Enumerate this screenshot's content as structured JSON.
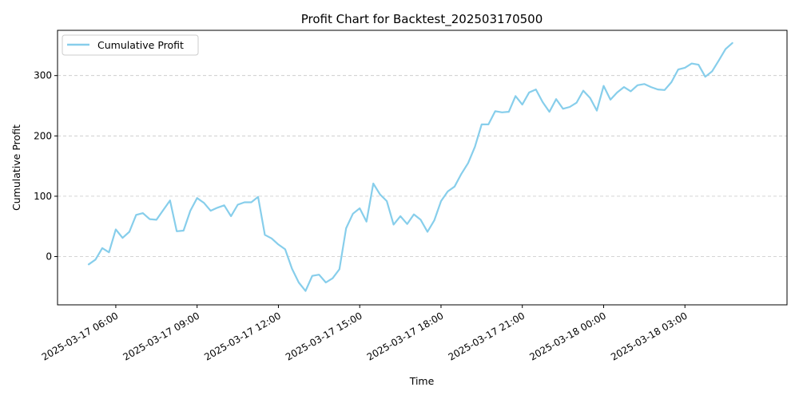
{
  "chart_data": {
    "type": "line",
    "title": "Profit Chart for Backtest_202503170500",
    "xlabel": "Time",
    "ylabel": "Cumulative Profit",
    "x_axis_type": "datetime",
    "xlim": [
      "2025-03-17 03:51",
      "2025-03-18 06:46"
    ],
    "ylim": [
      -80,
      375
    ],
    "yticks": [
      0,
      100,
      200,
      300
    ],
    "ytick_labels": [
      "0",
      "100",
      "200",
      "300"
    ],
    "xticks": [
      "2025-03-17 06:00",
      "2025-03-17 09:00",
      "2025-03-17 12:00",
      "2025-03-17 15:00",
      "2025-03-17 18:00",
      "2025-03-17 21:00",
      "2025-03-18 00:00",
      "2025-03-18 03:00"
    ],
    "xtick_labels": [
      "2025-03-17 06:00",
      "2025-03-17 09:00",
      "2025-03-17 12:00",
      "2025-03-17 15:00",
      "2025-03-17 18:00",
      "2025-03-17 21:00",
      "2025-03-18 00:00",
      "2025-03-18 03:00"
    ],
    "grid": "y-axis dashed",
    "legend": "upper left",
    "series": [
      {
        "name": "Cumulative Profit",
        "color": "#87CEEB",
        "x": [
          "2025-03-17 05:00",
          "2025-03-17 05:15",
          "2025-03-17 05:30",
          "2025-03-17 05:45",
          "2025-03-17 06:00",
          "2025-03-17 06:15",
          "2025-03-17 06:30",
          "2025-03-17 06:45",
          "2025-03-17 07:00",
          "2025-03-17 07:15",
          "2025-03-17 07:30",
          "2025-03-17 07:45",
          "2025-03-17 08:00",
          "2025-03-17 08:15",
          "2025-03-17 08:30",
          "2025-03-17 08:45",
          "2025-03-17 09:00",
          "2025-03-17 09:15",
          "2025-03-17 09:30",
          "2025-03-17 09:45",
          "2025-03-17 10:00",
          "2025-03-17 10:15",
          "2025-03-17 10:30",
          "2025-03-17 10:45",
          "2025-03-17 11:00",
          "2025-03-17 11:15",
          "2025-03-17 11:30",
          "2025-03-17 11:45",
          "2025-03-17 12:00",
          "2025-03-17 12:15",
          "2025-03-17 12:30",
          "2025-03-17 12:45",
          "2025-03-17 13:00",
          "2025-03-17 13:15",
          "2025-03-17 13:30",
          "2025-03-17 13:45",
          "2025-03-17 14:00",
          "2025-03-17 14:15",
          "2025-03-17 14:30",
          "2025-03-17 14:45",
          "2025-03-17 15:00",
          "2025-03-17 15:15",
          "2025-03-17 15:30",
          "2025-03-17 15:45",
          "2025-03-17 16:00",
          "2025-03-17 16:15",
          "2025-03-17 16:30",
          "2025-03-17 16:45",
          "2025-03-17 17:00",
          "2025-03-17 17:15",
          "2025-03-17 17:30",
          "2025-03-17 17:45",
          "2025-03-17 18:00",
          "2025-03-17 18:15",
          "2025-03-17 18:30",
          "2025-03-17 18:45",
          "2025-03-17 19:00",
          "2025-03-17 19:15",
          "2025-03-17 19:30",
          "2025-03-17 19:45",
          "2025-03-17 20:00",
          "2025-03-17 20:15",
          "2025-03-17 20:30",
          "2025-03-17 20:45",
          "2025-03-17 21:00",
          "2025-03-17 21:15",
          "2025-03-17 21:30",
          "2025-03-17 21:45",
          "2025-03-17 22:00",
          "2025-03-17 22:15",
          "2025-03-17 22:30",
          "2025-03-17 22:45",
          "2025-03-17 23:00",
          "2025-03-17 23:15",
          "2025-03-17 23:30",
          "2025-03-17 23:45",
          "2025-03-18 00:00",
          "2025-03-18 00:15",
          "2025-03-18 00:30",
          "2025-03-18 00:45",
          "2025-03-18 01:00",
          "2025-03-18 01:15",
          "2025-03-18 01:30",
          "2025-03-18 01:45",
          "2025-03-18 02:00",
          "2025-03-18 02:15",
          "2025-03-18 02:30",
          "2025-03-18 02:45",
          "2025-03-18 03:00",
          "2025-03-18 03:15",
          "2025-03-18 03:30",
          "2025-03-18 03:45",
          "2025-03-18 04:00",
          "2025-03-18 04:15",
          "2025-03-18 04:30",
          "2025-03-18 04:45"
        ],
        "y": [
          -13,
          -5,
          14,
          7,
          45,
          31,
          41,
          69,
          72,
          62,
          61,
          77,
          93,
          42,
          43,
          76,
          97,
          89,
          76,
          81,
          85,
          67,
          86,
          90,
          90,
          99,
          36,
          30,
          20,
          12,
          -20,
          -43,
          -57,
          -32,
          -30,
          -43,
          -36,
          -21,
          47,
          71,
          80,
          58,
          121,
          103,
          92,
          53,
          67,
          54,
          70,
          61,
          41,
          60,
          92,
          108,
          116,
          137,
          155,
          182,
          219,
          219,
          241,
          239,
          240,
          266,
          252,
          272,
          277,
          256,
          240,
          261,
          245,
          248,
          255,
          275,
          263,
          242,
          283,
          260,
          272,
          281,
          274,
          284,
          286,
          281,
          277,
          276,
          289,
          310,
          313,
          320,
          318,
          298,
          307,
          325,
          344,
          354
        ]
      }
    ]
  }
}
